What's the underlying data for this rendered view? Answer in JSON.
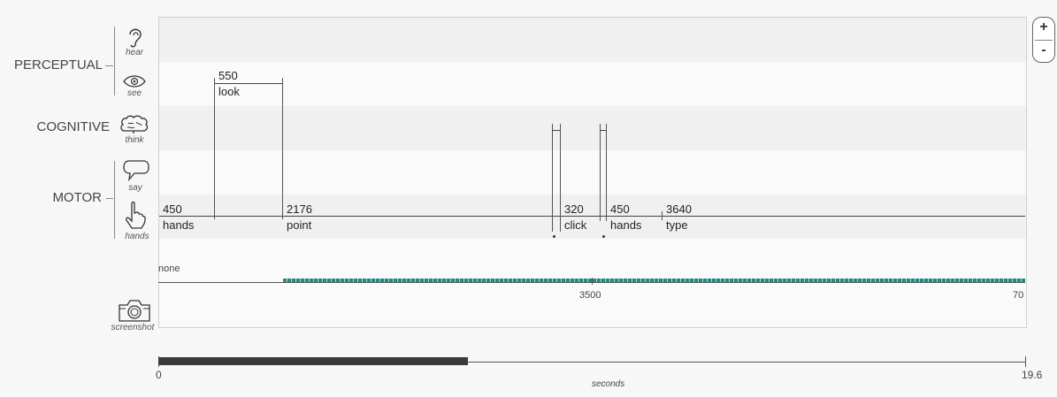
{
  "groups": {
    "perceptual": "PERCEPTUAL",
    "cognitive": "COGNITIVE",
    "motor": "MOTOR"
  },
  "rows": {
    "hear": "hear",
    "see": "see",
    "think": "think",
    "say": "say",
    "hands": "hands",
    "screenshot": "screenshot"
  },
  "operators": {
    "look": {
      "duration": "550",
      "name": "look"
    },
    "hands1": {
      "duration": "450",
      "name": "hands"
    },
    "point": {
      "duration": "2176",
      "name": "point"
    },
    "click": {
      "duration": "320",
      "name": "click"
    },
    "hands2": {
      "duration": "450",
      "name": "hands"
    },
    "type": {
      "duration": "3640",
      "name": "type"
    }
  },
  "screenshot_track": {
    "state_label": "none",
    "tick_mid": "3500",
    "tick_end": "70",
    "bar_color": "#1f8a85"
  },
  "scrubber": {
    "start": "0",
    "end": "19.6",
    "unit": "seconds",
    "progress_fraction": 0.357
  },
  "zoom": {
    "in": "+",
    "out": "-"
  }
}
